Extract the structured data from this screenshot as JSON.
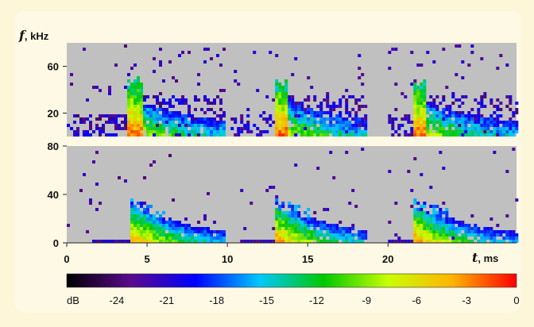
{
  "chart_data": {
    "type": "heatmap",
    "title": "",
    "y_axis": {
      "symbol": "f",
      "unit": ", kHz"
    },
    "x_axis": {
      "symbol": "t",
      "unit": ", ms",
      "range": [
        0,
        28
      ],
      "ticks": [
        0,
        5,
        10,
        15,
        20
      ]
    },
    "panels": [
      {
        "name": "upper",
        "ylim": [
          0,
          80
        ],
        "ticks": [
          20,
          60
        ]
      },
      {
        "name": "lower",
        "ylim": [
          0,
          80
        ],
        "ticks": [
          0,
          40,
          80
        ]
      }
    ],
    "segments_ms": [
      [
        0,
        9.8
      ],
      [
        10.2,
        18.6
      ],
      [
        20,
        28
      ]
    ],
    "pulse_onsets_ms": [
      4.0,
      13.1,
      21.7
    ],
    "colorbar": {
      "unit_label": "dB",
      "range": [
        -27,
        0
      ],
      "ticks": [
        -24,
        -21,
        -18,
        -15,
        -12,
        -9,
        -6,
        -3,
        0
      ],
      "colors": [
        "#000000",
        "#5a0a8c",
        "#0000ff",
        "#00c8ff",
        "#00c800",
        "#c8ff00",
        "#ffb400",
        "#ff0000"
      ]
    },
    "background_color": "#c0c0c0"
  }
}
